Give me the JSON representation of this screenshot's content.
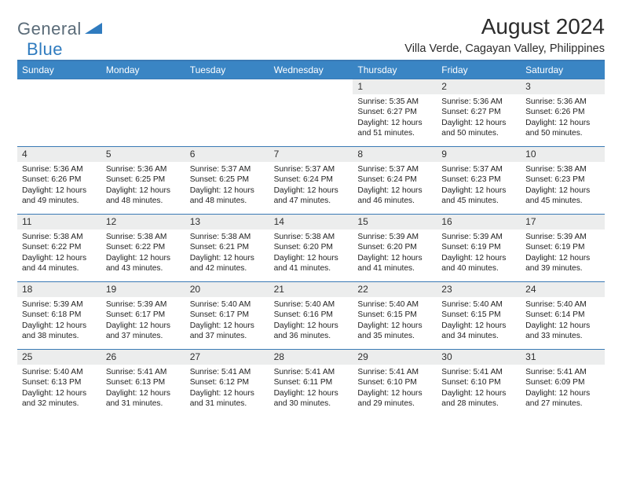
{
  "brand": {
    "part1": "General",
    "part2": "Blue"
  },
  "title": "August 2024",
  "subtitle": "Villa Verde, Cagayan Valley, Philippines",
  "colors": {
    "header_blue": "#3a85c4",
    "rule_blue": "#3a7ab5",
    "daynum_bg": "#eceded",
    "logo_gray": "#5a6b78",
    "logo_blue": "#2f7bbf",
    "text": "#222222"
  },
  "dayHeaders": [
    "Sunday",
    "Monday",
    "Tuesday",
    "Wednesday",
    "Thursday",
    "Friday",
    "Saturday"
  ],
  "startOffset": 4,
  "days": [
    {
      "n": "1",
      "sunrise": "5:35 AM",
      "sunset": "6:27 PM",
      "daylight": "12 hours and 51 minutes."
    },
    {
      "n": "2",
      "sunrise": "5:36 AM",
      "sunset": "6:27 PM",
      "daylight": "12 hours and 50 minutes."
    },
    {
      "n": "3",
      "sunrise": "5:36 AM",
      "sunset": "6:26 PM",
      "daylight": "12 hours and 50 minutes."
    },
    {
      "n": "4",
      "sunrise": "5:36 AM",
      "sunset": "6:26 PM",
      "daylight": "12 hours and 49 minutes."
    },
    {
      "n": "5",
      "sunrise": "5:36 AM",
      "sunset": "6:25 PM",
      "daylight": "12 hours and 48 minutes."
    },
    {
      "n": "6",
      "sunrise": "5:37 AM",
      "sunset": "6:25 PM",
      "daylight": "12 hours and 48 minutes."
    },
    {
      "n": "7",
      "sunrise": "5:37 AM",
      "sunset": "6:24 PM",
      "daylight": "12 hours and 47 minutes."
    },
    {
      "n": "8",
      "sunrise": "5:37 AM",
      "sunset": "6:24 PM",
      "daylight": "12 hours and 46 minutes."
    },
    {
      "n": "9",
      "sunrise": "5:37 AM",
      "sunset": "6:23 PM",
      "daylight": "12 hours and 45 minutes."
    },
    {
      "n": "10",
      "sunrise": "5:38 AM",
      "sunset": "6:23 PM",
      "daylight": "12 hours and 45 minutes."
    },
    {
      "n": "11",
      "sunrise": "5:38 AM",
      "sunset": "6:22 PM",
      "daylight": "12 hours and 44 minutes."
    },
    {
      "n": "12",
      "sunrise": "5:38 AM",
      "sunset": "6:22 PM",
      "daylight": "12 hours and 43 minutes."
    },
    {
      "n": "13",
      "sunrise": "5:38 AM",
      "sunset": "6:21 PM",
      "daylight": "12 hours and 42 minutes."
    },
    {
      "n": "14",
      "sunrise": "5:38 AM",
      "sunset": "6:20 PM",
      "daylight": "12 hours and 41 minutes."
    },
    {
      "n": "15",
      "sunrise": "5:39 AM",
      "sunset": "6:20 PM",
      "daylight": "12 hours and 41 minutes."
    },
    {
      "n": "16",
      "sunrise": "5:39 AM",
      "sunset": "6:19 PM",
      "daylight": "12 hours and 40 minutes."
    },
    {
      "n": "17",
      "sunrise": "5:39 AM",
      "sunset": "6:19 PM",
      "daylight": "12 hours and 39 minutes."
    },
    {
      "n": "18",
      "sunrise": "5:39 AM",
      "sunset": "6:18 PM",
      "daylight": "12 hours and 38 minutes."
    },
    {
      "n": "19",
      "sunrise": "5:39 AM",
      "sunset": "6:17 PM",
      "daylight": "12 hours and 37 minutes."
    },
    {
      "n": "20",
      "sunrise": "5:40 AM",
      "sunset": "6:17 PM",
      "daylight": "12 hours and 37 minutes."
    },
    {
      "n": "21",
      "sunrise": "5:40 AM",
      "sunset": "6:16 PM",
      "daylight": "12 hours and 36 minutes."
    },
    {
      "n": "22",
      "sunrise": "5:40 AM",
      "sunset": "6:15 PM",
      "daylight": "12 hours and 35 minutes."
    },
    {
      "n": "23",
      "sunrise": "5:40 AM",
      "sunset": "6:15 PM",
      "daylight": "12 hours and 34 minutes."
    },
    {
      "n": "24",
      "sunrise": "5:40 AM",
      "sunset": "6:14 PM",
      "daylight": "12 hours and 33 minutes."
    },
    {
      "n": "25",
      "sunrise": "5:40 AM",
      "sunset": "6:13 PM",
      "daylight": "12 hours and 32 minutes."
    },
    {
      "n": "26",
      "sunrise": "5:41 AM",
      "sunset": "6:13 PM",
      "daylight": "12 hours and 31 minutes."
    },
    {
      "n": "27",
      "sunrise": "5:41 AM",
      "sunset": "6:12 PM",
      "daylight": "12 hours and 31 minutes."
    },
    {
      "n": "28",
      "sunrise": "5:41 AM",
      "sunset": "6:11 PM",
      "daylight": "12 hours and 30 minutes."
    },
    {
      "n": "29",
      "sunrise": "5:41 AM",
      "sunset": "6:10 PM",
      "daylight": "12 hours and 29 minutes."
    },
    {
      "n": "30",
      "sunrise": "5:41 AM",
      "sunset": "6:10 PM",
      "daylight": "12 hours and 28 minutes."
    },
    {
      "n": "31",
      "sunrise": "5:41 AM",
      "sunset": "6:09 PM",
      "daylight": "12 hours and 27 minutes."
    }
  ],
  "labels": {
    "sunrise": "Sunrise:",
    "sunset": "Sunset:",
    "daylight": "Daylight:"
  }
}
